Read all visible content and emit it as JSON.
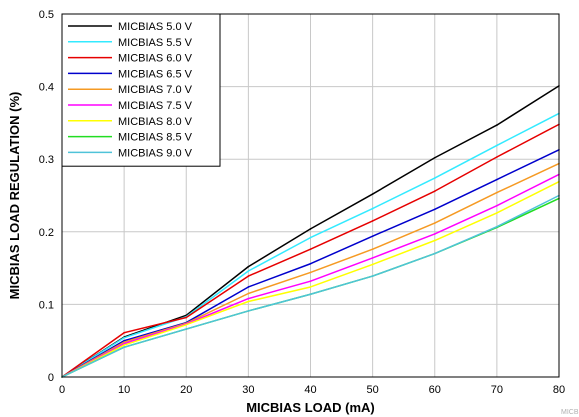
{
  "chart_data": {
    "type": "line",
    "title": "",
    "xlabel": "MICBIAS LOAD (mA)",
    "ylabel": "MICBIAS LOAD REGULATION (%)",
    "xlim": [
      0,
      80
    ],
    "ylim": [
      0,
      0.5
    ],
    "x_ticks": [
      0,
      10,
      20,
      30,
      40,
      50,
      60,
      70,
      80
    ],
    "y_ticks": [
      0,
      0.1,
      0.2,
      0.3,
      0.4,
      0.5
    ],
    "x_tick_labels": [
      "0",
      "10",
      "20",
      "30",
      "40",
      "50",
      "60",
      "70",
      "80"
    ],
    "y_tick_labels": [
      "0",
      "0.1",
      "0.2",
      "0.3",
      "0.4",
      "0.5"
    ],
    "grid": true,
    "legend_position": "top-left",
    "x": [
      0,
      10,
      20,
      30,
      40,
      50,
      60,
      70,
      80
    ],
    "series": [
      {
        "name": "MICBIAS 5.0 V",
        "color": "#000000",
        "values": [
          0,
          0.055,
          0.085,
          0.152,
          0.204,
          0.252,
          0.302,
          0.347,
          0.401
        ]
      },
      {
        "name": "MICBIAS 5.5 V",
        "color": "#33eaff",
        "values": [
          0,
          0.054,
          0.083,
          0.146,
          0.192,
          0.232,
          0.274,
          0.319,
          0.363
        ]
      },
      {
        "name": "MICBIAS 6.0 V",
        "color": "#e60000",
        "values": [
          0,
          0.061,
          0.082,
          0.139,
          0.176,
          0.215,
          0.256,
          0.303,
          0.348
        ]
      },
      {
        "name": "MICBIAS 6.5 V",
        "color": "#0000cc",
        "values": [
          0,
          0.05,
          0.075,
          0.124,
          0.156,
          0.194,
          0.231,
          0.272,
          0.313
        ]
      },
      {
        "name": "MICBIAS 7.0 V",
        "color": "#f59a23",
        "values": [
          0,
          0.048,
          0.074,
          0.115,
          0.144,
          0.176,
          0.212,
          0.254,
          0.294
        ]
      },
      {
        "name": "MICBIAS 7.5 V",
        "color": "#ff00ff",
        "values": [
          0,
          0.046,
          0.073,
          0.108,
          0.132,
          0.164,
          0.197,
          0.236,
          0.279
        ]
      },
      {
        "name": "MICBIAS 8.0 V",
        "color": "#ffff00",
        "values": [
          0,
          0.044,
          0.072,
          0.104,
          0.124,
          0.155,
          0.188,
          0.226,
          0.269
        ]
      },
      {
        "name": "MICBIAS 8.5 V",
        "color": "#22dd22",
        "values": [
          0,
          0.041,
          0.066,
          0.091,
          0.114,
          0.139,
          0.17,
          0.206,
          0.246
        ]
      },
      {
        "name": "MICBIAS 9.0 V",
        "color": "#4fc3d9",
        "values": [
          0,
          0.041,
          0.066,
          0.091,
          0.114,
          0.139,
          0.17,
          0.207,
          0.25
        ]
      }
    ]
  },
  "watermark": "MICB"
}
